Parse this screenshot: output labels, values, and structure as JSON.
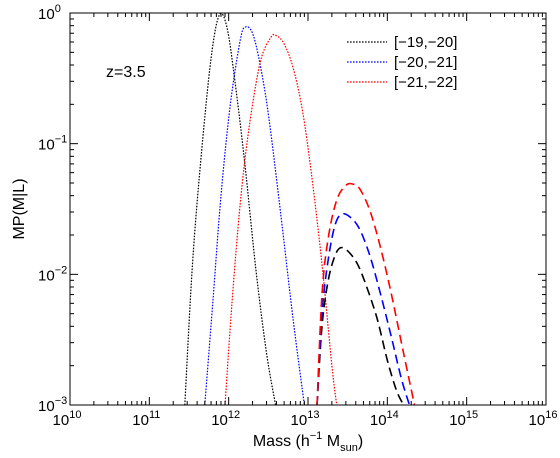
{
  "chart_data": {
    "type": "line",
    "title": "",
    "xlabel": "Mass (h",
    "xlabel_sup": "−1",
    "xlabel_mid": " M",
    "xlabel_sub": "sun",
    "xlabel_end": ")",
    "ylabel": "MP(M|L)",
    "annotation": "z=3.5",
    "x_scale": "log",
    "y_scale": "log",
    "xlim": [
      10000000000.0,
      1e+16
    ],
    "ylim": [
      0.001,
      1
    ],
    "grid": false,
    "legend_position": "top-right",
    "x_tick_exponents": [
      "10",
      "11",
      "12",
      "13",
      "14",
      "15",
      "16"
    ],
    "y_ticks": [
      {
        "value": 0.001,
        "exp": "−3"
      },
      {
        "value": 0.01,
        "exp": "−2"
      },
      {
        "value": 0.1,
        "exp": "−1"
      },
      {
        "value": 1,
        "exp": "0"
      }
    ],
    "tick_base": "10",
    "series": [
      {
        "name": "[−19,−20]",
        "color": "#000000",
        "style": "dotted",
        "component": "central",
        "x": [
          280000000000.0,
          350000000000.0,
          450000000000.0,
          600000000000.0,
          760000000000.0,
          950000000000.0,
          1200000000000.0,
          1600000000000.0,
          2200000000000.0,
          3000000000000.0,
          3900000000000.0
        ],
        "y": [
          0.001,
          0.012,
          0.08,
          0.45,
          0.96,
          0.78,
          0.3,
          0.07,
          0.011,
          0.0025,
          0.001
        ]
      },
      {
        "name": "[−20,−21]",
        "color": "#0000ff",
        "style": "dotted",
        "component": "central",
        "x": [
          500000000000.0,
          630000000000.0,
          800000000000.0,
          1050000000000.0,
          1400000000000.0,
          1620000000000.0,
          2000000000000.0,
          2500000000000.0,
          3200000000000.0,
          4500000000000.0,
          6500000000000.0,
          9000000000000.0
        ],
        "y": [
          0.001,
          0.006,
          0.04,
          0.2,
          0.62,
          0.78,
          0.7,
          0.4,
          0.16,
          0.03,
          0.0045,
          0.001
        ]
      },
      {
        "name": "[−21,−22]",
        "color": "#ff0000",
        "style": "dotted",
        "component": "central",
        "x": [
          900000000000.0,
          1100000000000.0,
          1400000000000.0,
          1800000000000.0,
          2500000000000.0,
          3400000000000.0,
          4000000000000.0,
          5000000000000.0,
          6500000000000.0,
          8500000000000.0,
          11000000000000.0,
          15000000000000.0,
          20000000000000.0,
          23000000000000.0
        ],
        "y": [
          0.001,
          0.006,
          0.035,
          0.13,
          0.42,
          0.65,
          0.67,
          0.58,
          0.38,
          0.18,
          0.06,
          0.012,
          0.002,
          0.001
        ]
      },
      {
        "name": "",
        "color": "#000000",
        "style": "dashed",
        "component": "satellite",
        "x": [
          13000000000000.0,
          15000000000000.0,
          18000000000000.0,
          22000000000000.0,
          26000000000000.0,
          32000000000000.0,
          42000000000000.0,
          55000000000000.0,
          75000000000000.0,
          100000000000000.0,
          130000000000000.0,
          160000000000000.0
        ],
        "y": [
          0.001,
          0.004,
          0.009,
          0.014,
          0.016,
          0.015,
          0.012,
          0.008,
          0.0045,
          0.0022,
          0.0013,
          0.001
        ]
      },
      {
        "name": "",
        "color": "#0000ff",
        "style": "dashed",
        "component": "satellite",
        "x": [
          13000000000000.0,
          15000000000000.0,
          18000000000000.0,
          22000000000000.0,
          27000000000000.0,
          35000000000000.0,
          45000000000000.0,
          60000000000000.0,
          80000000000000.0,
          110000000000000.0,
          150000000000000.0,
          190000000000000.0
        ],
        "y": [
          0.001,
          0.005,
          0.013,
          0.024,
          0.029,
          0.027,
          0.022,
          0.014,
          0.0075,
          0.0035,
          0.0016,
          0.001
        ]
      },
      {
        "name": "",
        "color": "#ff0000",
        "style": "dashed",
        "component": "satellite",
        "x": [
          13000000000000.0,
          15000000000000.0,
          18000000000000.0,
          23000000000000.0,
          30000000000000.0,
          37000000000000.0,
          45000000000000.0,
          60000000000000.0,
          80000000000000.0,
          110000000000000.0,
          160000000000000.0,
          220000000000000.0
        ],
        "y": [
          0.001,
          0.007,
          0.019,
          0.037,
          0.048,
          0.049,
          0.045,
          0.031,
          0.017,
          0.0075,
          0.0025,
          0.001
        ]
      }
    ]
  }
}
